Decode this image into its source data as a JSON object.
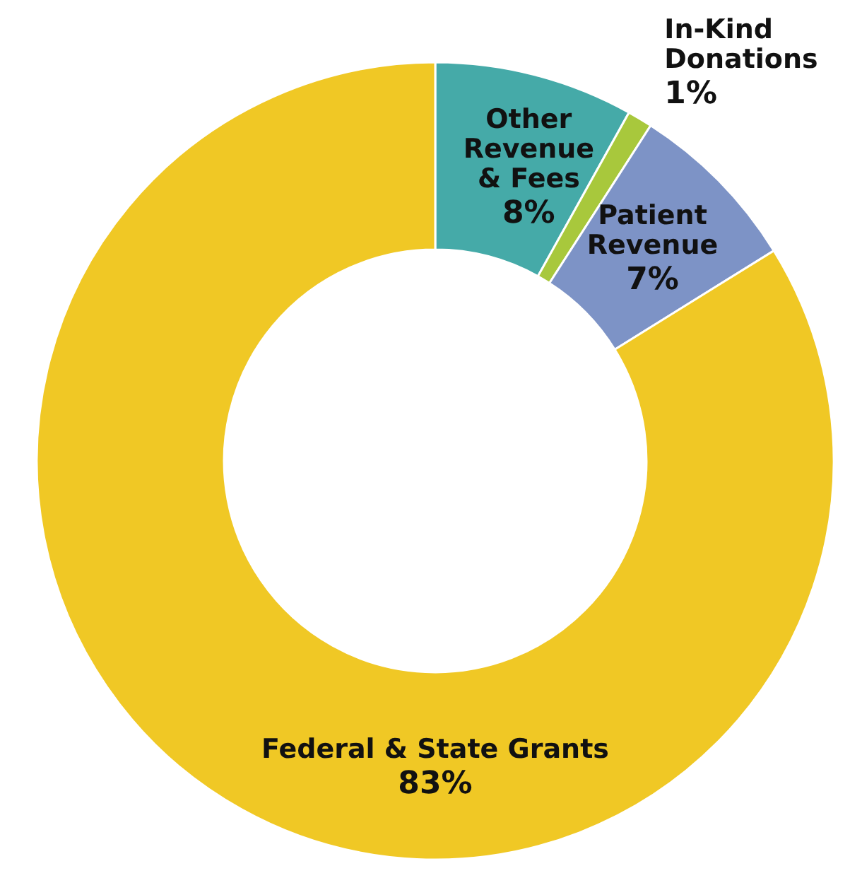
{
  "chart_data": {
    "type": "donut",
    "categories": [
      "Other Revenue & Fees",
      "In-Kind Donations",
      "Patient Revenue",
      "Federal & State Grants"
    ],
    "values": [
      8,
      1,
      7,
      83
    ],
    "colors": [
      "#45aaa8",
      "#a8c83c",
      "#7d93c6",
      "#f0c825"
    ],
    "value_labels": [
      "8%",
      "1%",
      "7%",
      "83%"
    ]
  }
}
